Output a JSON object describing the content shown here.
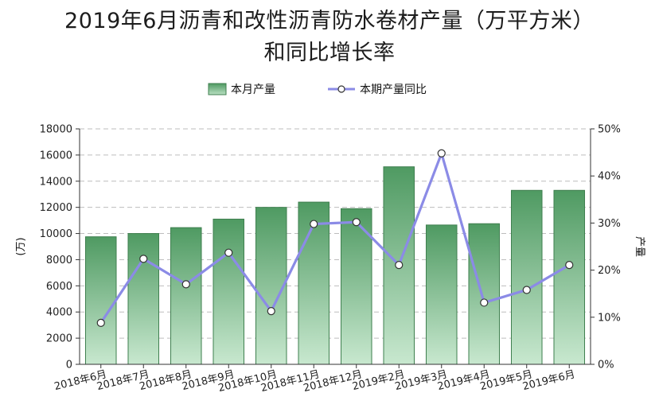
{
  "chart_data": {
    "type": "bar",
    "title_line1": "2019年6月沥青和改性沥青防水卷材产量（万平方米）",
    "title_line2": "和同比增长率",
    "categories": [
      "2018年6月",
      "2018年7月",
      "2018年8月",
      "2018年9月",
      "2018年10月",
      "2018年11月",
      "2018年12月",
      "2019年2月",
      "2019年3月",
      "2019年4月",
      "2019年5月",
      "2019年6月"
    ],
    "series": [
      {
        "name": "本月产量",
        "type": "bar",
        "axis": "left",
        "color": "#5a9e6c",
        "values": [
          9750,
          10000,
          10450,
          11100,
          12000,
          12400,
          11900,
          15100,
          10650,
          10750,
          13300,
          13300
        ]
      },
      {
        "name": "本期产量同比",
        "type": "line",
        "axis": "right",
        "color": "#8b8be6",
        "values": [
          8.8,
          22.4,
          17.0,
          23.7,
          11.3,
          29.8,
          30.2,
          21.1,
          44.8,
          13.1,
          15.8,
          21.1
        ]
      }
    ],
    "ylabel_left": "(万)",
    "ylabel_right": "产量",
    "ylim_left": [
      0,
      18000
    ],
    "yticks_left": [
      "0",
      "2000",
      "4000",
      "6000",
      "8000",
      "10000",
      "12000",
      "14000",
      "16000",
      "18000"
    ],
    "ylim_right": [
      0,
      50
    ],
    "yticks_right": [
      "0%",
      "10%",
      "20%",
      "30%",
      "40%",
      "50%"
    ],
    "grid": true,
    "legend": "top-center"
  }
}
